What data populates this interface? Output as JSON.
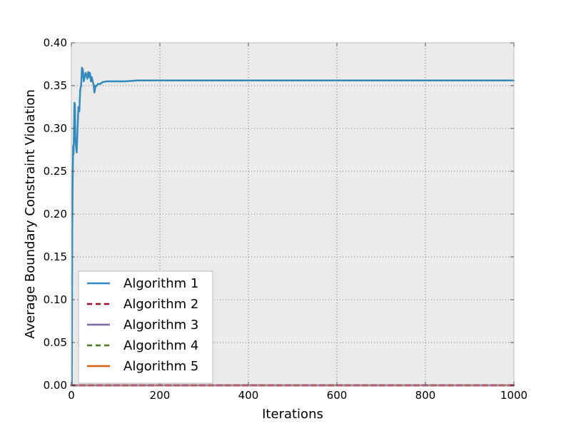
{
  "chart_data": {
    "type": "line",
    "title": "",
    "xlabel": "Iterations",
    "ylabel": "Average Boundary Constraint Violation",
    "xlim": [
      0,
      1000
    ],
    "ylim": [
      0,
      0.4
    ],
    "xticks": [
      0,
      200,
      400,
      600,
      800,
      1000
    ],
    "yticks": [
      0.0,
      0.05,
      0.1,
      0.15,
      0.2,
      0.25,
      0.3,
      0.35,
      0.4
    ],
    "xtick_labels": [
      "0",
      "200",
      "400",
      "600",
      "800",
      "1000"
    ],
    "ytick_labels": [
      "0.00",
      "0.05",
      "0.10",
      "0.15",
      "0.20",
      "0.25",
      "0.30",
      "0.35",
      "0.40"
    ],
    "grid": true,
    "legend_position": "lower-left",
    "background_color": "#ebebeb",
    "series": [
      {
        "name": "Algorithm 1",
        "color": "#348abd",
        "style": "solid",
        "x": [
          1,
          2,
          3,
          4,
          5,
          6,
          7,
          8,
          9,
          10,
          12,
          14,
          16,
          18,
          20,
          22,
          24,
          26,
          28,
          30,
          32,
          34,
          36,
          38,
          40,
          42,
          44,
          46,
          48,
          50,
          52,
          55,
          58,
          60,
          65,
          70,
          80,
          90,
          100,
          120,
          150,
          200,
          300,
          400,
          500,
          600,
          700,
          800,
          900,
          1000
        ],
        "y": [
          0.0,
          0.18,
          0.24,
          0.28,
          0.27,
          0.3,
          0.33,
          0.328,
          0.285,
          0.282,
          0.272,
          0.3,
          0.325,
          0.32,
          0.345,
          0.35,
          0.371,
          0.368,
          0.355,
          0.36,
          0.365,
          0.362,
          0.358,
          0.366,
          0.36,
          0.365,
          0.355,
          0.36,
          0.355,
          0.352,
          0.342,
          0.35,
          0.35,
          0.352,
          0.352,
          0.354,
          0.355,
          0.355,
          0.355,
          0.355,
          0.356,
          0.356,
          0.356,
          0.356,
          0.356,
          0.356,
          0.356,
          0.356,
          0.356,
          0.356
        ]
      },
      {
        "name": "Algorithm 2",
        "color": "#a60628",
        "style": "dashed",
        "x": [
          0,
          1000
        ],
        "y": [
          0.0,
          0.0
        ]
      },
      {
        "name": "Algorithm 3",
        "color": "#7a68a6",
        "style": "solid",
        "x": [
          0,
          1000
        ],
        "y": [
          0.0,
          0.0
        ]
      },
      {
        "name": "Algorithm 4",
        "color": "#467821",
        "style": "dashed",
        "x": [
          0,
          1000
        ],
        "y": [
          0.0,
          0.0
        ]
      },
      {
        "name": "Algorithm 5",
        "color": "#d55e00",
        "style": "solid",
        "x": [
          0,
          1000
        ],
        "y": [
          0.0,
          0.0
        ]
      }
    ]
  }
}
